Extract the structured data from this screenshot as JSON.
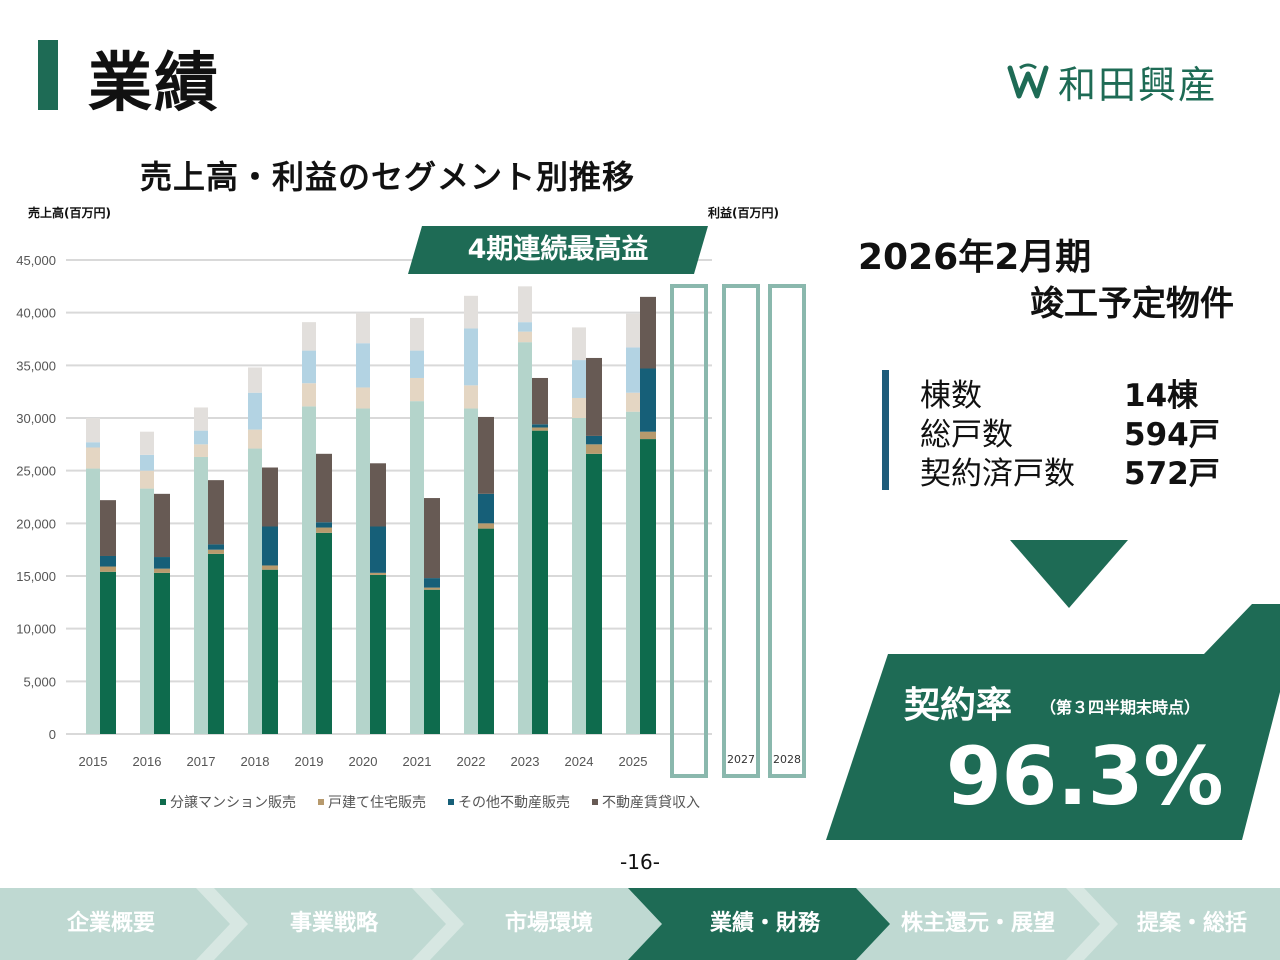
{
  "page": {
    "title": "業績",
    "number": "-16-"
  },
  "logo": {
    "text": "和田興産",
    "icon": "wada-kosan-logo-icon"
  },
  "chart_header": {
    "title": "売上高・利益のセグメント別推移",
    "left_unit": "売上高(百万円)",
    "right_unit": "利益(百万円)",
    "banner": "4期連続最高益"
  },
  "future_labels": [
    "",
    "2027",
    "2028"
  ],
  "chart_data": {
    "type": "bar",
    "categories": [
      "2015",
      "2016",
      "2017",
      "2018",
      "2019",
      "2020",
      "2021",
      "2022",
      "2023",
      "2024",
      "2025"
    ],
    "ylim": [
      0,
      45000
    ],
    "yticks": [
      "0",
      "5,000",
      "10,000",
      "15,000",
      "20,000",
      "25,000",
      "30,000",
      "35,000",
      "40,000",
      "45,000"
    ],
    "sales_series": [
      {
        "name": "分譲マンション販売",
        "values": [
          25200,
          23300,
          26300,
          27100,
          31100,
          30900,
          31600,
          30900,
          37200,
          30000,
          30600
        ]
      },
      {
        "name": "戸建て住宅販売",
        "values": [
          2000,
          1700,
          1200,
          1800,
          2200,
          2000,
          2200,
          2200,
          1000,
          1900,
          1800
        ]
      },
      {
        "name": "その他不動産販売",
        "values": [
          500,
          1500,
          1300,
          3500,
          3100,
          4200,
          2600,
          5400,
          900,
          3600,
          4300
        ]
      },
      {
        "name": "不動産賃貸収入",
        "values": [
          2300,
          2200,
          2200,
          2400,
          2700,
          2900,
          3100,
          3100,
          3400,
          3100,
          3200
        ]
      }
    ],
    "profit_series": [
      {
        "name": "分譲マンション販売",
        "values": [
          15400,
          15300,
          17100,
          15600,
          19100,
          15100,
          13700,
          19500,
          28800,
          26600,
          28000
        ]
      },
      {
        "name": "戸建て住宅販売",
        "values": [
          500,
          400,
          400,
          400,
          500,
          200,
          200,
          500,
          300,
          900,
          700
        ]
      },
      {
        "name": "その他不動産販売",
        "values": [
          1000,
          1100,
          500,
          3700,
          500,
          4400,
          900,
          2800,
          300,
          800,
          6000
        ]
      },
      {
        "name": "不動産賃貸収入",
        "values": [
          5300,
          6000,
          6100,
          5600,
          6500,
          6000,
          7600,
          7300,
          4400,
          7400,
          6800
        ]
      }
    ],
    "legend": [
      "分譲マンション販売",
      "戸建て住宅販売",
      "その他不動産販売",
      "不動産賃貸収入"
    ],
    "colors": {
      "sales": [
        "#b4d4cb",
        "#e4d6c3",
        "#b3d3e3",
        "#e2dfdc"
      ],
      "profit": [
        "#0e6b4d",
        "#b79a6d",
        "#165f78",
        "#675a54"
      ]
    }
  },
  "completion": {
    "title": "2026年2月期",
    "subtitle": "竣工予定物件",
    "stats": [
      {
        "label": "棟数",
        "value": "14棟"
      },
      {
        "label": "総戸数",
        "value": "594戸"
      },
      {
        "label": "契約済戸数",
        "value": "572戸"
      }
    ],
    "rate_label": "契約率",
    "rate_note": "（第３四半期末時点）",
    "rate_value": "96.3%"
  },
  "nav": {
    "items": [
      "企業概要",
      "事業戦略",
      "市場環境",
      "業績・財務",
      "株主還元・展望",
      "提案・総括"
    ],
    "active_index": 3
  },
  "colors": {
    "brand": "#1e6b55",
    "nav_bg": "#bfd9d2",
    "accent": "#1e5c7a"
  }
}
